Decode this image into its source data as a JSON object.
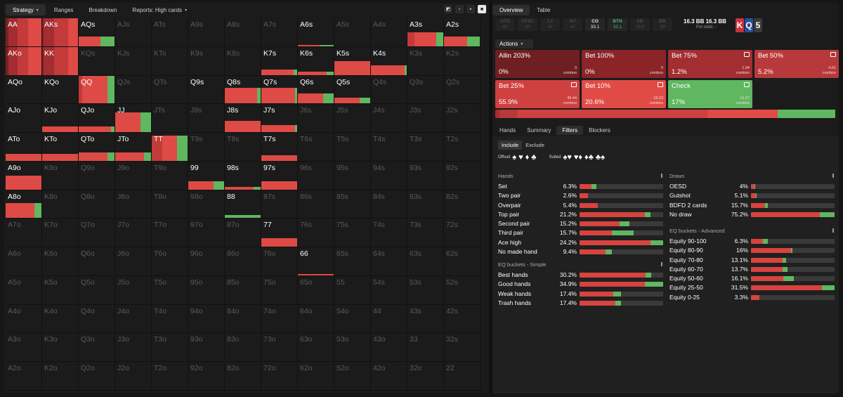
{
  "left_tabs": [
    {
      "label": "Strategy",
      "active": true,
      "caret": "▾"
    },
    {
      "label": "Ranges",
      "active": false,
      "caret": ""
    },
    {
      "label": "Breakdown",
      "active": false,
      "caret": ""
    },
    {
      "label": "Reports: High cards",
      "active": false,
      "caret": "▾"
    }
  ],
  "grid_tools": [
    "◩",
    "▫",
    "▪",
    "■"
  ],
  "grid": [
    [
      "AA",
      "AKs",
      "AQs",
      "AJs",
      "ATs",
      "A9s",
      "A8s",
      "A7s",
      "A6s",
      "A5s",
      "A4s",
      "A3s",
      "A2s"
    ],
    [
      "AKo",
      "KK",
      "KQs",
      "KJs",
      "KTs",
      "K9s",
      "K8s",
      "K7s",
      "K6s",
      "K5s",
      "K4s",
      "K3s",
      "K2s"
    ],
    [
      "AQo",
      "KQo",
      "QQ",
      "QJs",
      "QTs",
      "Q9s",
      "Q8s",
      "Q7s",
      "Q6s",
      "Q5s",
      "Q4s",
      "Q3s",
      "Q2s"
    ],
    [
      "AJo",
      "KJo",
      "QJo",
      "JJ",
      "JTs",
      "J9s",
      "J8s",
      "J7s",
      "J6s",
      "J5s",
      "J4s",
      "J3s",
      "J2s"
    ],
    [
      "ATo",
      "KTo",
      "QTo",
      "JTo",
      "TT",
      "T9s",
      "T8s",
      "T7s",
      "T6s",
      "T5s",
      "T4s",
      "T3s",
      "T2s"
    ],
    [
      "A9o",
      "K9o",
      "Q9o",
      "J9o",
      "T9o",
      "99",
      "98s",
      "97s",
      "96s",
      "95s",
      "94s",
      "93s",
      "92s"
    ],
    [
      "A8o",
      "K8o",
      "Q8o",
      "J8o",
      "T8o",
      "98o",
      "88",
      "87s",
      "86s",
      "85s",
      "84s",
      "83s",
      "82s"
    ],
    [
      "A7o",
      "K7o",
      "Q7o",
      "J7o",
      "T7o",
      "97o",
      "87o",
      "77",
      "76s",
      "75s",
      "74s",
      "73s",
      "72s"
    ],
    [
      "A6o",
      "K6o",
      "Q6o",
      "J6o",
      "T6o",
      "96o",
      "86o",
      "76o",
      "66",
      "65s",
      "64s",
      "63s",
      "62s"
    ],
    [
      "A5o",
      "K5o",
      "Q5o",
      "J5o",
      "T5o",
      "95o",
      "85o",
      "75o",
      "65o",
      "55",
      "54s",
      "53s",
      "52s"
    ],
    [
      "A4o",
      "K4o",
      "Q4o",
      "J4o",
      "T4o",
      "94o",
      "84o",
      "74o",
      "64o",
      "54o",
      "44",
      "43s",
      "42s"
    ],
    [
      "A3o",
      "K3o",
      "Q3o",
      "J3o",
      "T3o",
      "93o",
      "83o",
      "73o",
      "63o",
      "53o",
      "43o",
      "33",
      "32s"
    ],
    [
      "A2o",
      "K2o",
      "Q2o",
      "J2o",
      "T2o",
      "92o",
      "82o",
      "72o",
      "62o",
      "52o",
      "42o",
      "32o",
      "22"
    ]
  ],
  "grid_bright": [
    "AA",
    "AKs",
    "AQs",
    "A6s",
    "A3s",
    "A2s",
    "AKo",
    "KK",
    "K7s",
    "K6s",
    "K5s",
    "K4s",
    "AQo",
    "KQo",
    "QQ",
    "Q9s",
    "Q8s",
    "Q7s",
    "Q6s",
    "Q5s",
    "AJo",
    "KJo",
    "QJo",
    "JJ",
    "J8s",
    "J7s",
    "ATo",
    "KTo",
    "QTo",
    "JTo",
    "TT",
    "T7s",
    "A9o",
    "99",
    "98s",
    "97s",
    "A8o",
    "88",
    "77",
    "66"
  ],
  "grid_freq": {
    "AA": {
      "f": 1.0,
      "m": [
        8,
        26,
        28,
        38,
        0
      ]
    },
    "AKs": {
      "f": 1.0,
      "m": [
        4,
        30,
        38,
        28,
        0
      ]
    },
    "AQs": {
      "f": 0.35,
      "m": [
        0,
        0,
        0,
        60,
        40
      ]
    },
    "A6s": {
      "f": 0.05,
      "m": [
        0,
        0,
        0,
        60,
        40
      ]
    },
    "A3s": {
      "f": 0.5,
      "m": [
        0,
        0,
        20,
        60,
        20
      ]
    },
    "A2s": {
      "f": 0.35,
      "m": [
        0,
        0,
        0,
        65,
        35
      ]
    },
    "AKo": {
      "f": 1.0,
      "m": [
        8,
        26,
        28,
        38,
        0
      ]
    },
    "KK": {
      "f": 1.0,
      "m": [
        4,
        30,
        38,
        28,
        0
      ]
    },
    "K7s": {
      "f": 0.2,
      "m": [
        0,
        0,
        0,
        90,
        10
      ]
    },
    "K6s": {
      "f": 0.12,
      "m": [
        0,
        0,
        0,
        80,
        20
      ]
    },
    "K5s": {
      "f": 0.5,
      "m": [
        0,
        0,
        0,
        100,
        0
      ]
    },
    "K4s": {
      "f": 0.35,
      "m": [
        0,
        0,
        0,
        95,
        5
      ]
    },
    "QQ": {
      "f": 1.0,
      "m": [
        0,
        0,
        10,
        70,
        20
      ]
    },
    "Q8s": {
      "f": 0.55,
      "m": [
        0,
        0,
        0,
        90,
        10
      ]
    },
    "Q7s": {
      "f": 0.55,
      "m": [
        0,
        0,
        0,
        95,
        5
      ]
    },
    "Q6s": {
      "f": 0.35,
      "m": [
        0,
        0,
        0,
        70,
        30
      ]
    },
    "Q5s": {
      "f": 0.2,
      "m": [
        0,
        0,
        0,
        70,
        30
      ]
    },
    "QJo": {
      "f": 0.2,
      "m": [
        0,
        0,
        0,
        90,
        10
      ]
    },
    "KJo": {
      "f": 0.2,
      "m": [
        0,
        0,
        0,
        100,
        0
      ]
    },
    "JJ": {
      "f": 0.7,
      "m": [
        0,
        0,
        0,
        70,
        30
      ]
    },
    "J8s": {
      "f": 0.4,
      "m": [
        0,
        0,
        0,
        100,
        0
      ]
    },
    "J7s": {
      "f": 0.25,
      "m": [
        0,
        0,
        0,
        95,
        5
      ]
    },
    "ATo": {
      "f": 0.25,
      "m": [
        0,
        0,
        0,
        100,
        0
      ]
    },
    "KTo": {
      "f": 0.25,
      "m": [
        0,
        0,
        0,
        100,
        0
      ]
    },
    "QTo": {
      "f": 0.3,
      "m": [
        0,
        0,
        0,
        80,
        20
      ]
    },
    "JTo": {
      "f": 0.3,
      "m": [
        0,
        0,
        0,
        80,
        20
      ]
    },
    "TT": {
      "f": 0.9,
      "m": [
        0,
        0,
        30,
        40,
        30
      ]
    },
    "T7s": {
      "f": 0.2,
      "m": [
        0,
        0,
        0,
        100,
        0
      ]
    },
    "A9o": {
      "f": 0.5,
      "m": [
        0,
        0,
        0,
        100,
        0
      ]
    },
    "99": {
      "f": 0.3,
      "m": [
        0,
        0,
        0,
        70,
        30
      ]
    },
    "98s": {
      "f": 0.1,
      "m": [
        0,
        0,
        0,
        80,
        20
      ]
    },
    "97s": {
      "f": 0.3,
      "m": [
        0,
        0,
        0,
        100,
        0
      ]
    },
    "A8o": {
      "f": 0.55,
      "m": [
        0,
        0,
        0,
        80,
        20
      ]
    },
    "88": {
      "f": 0.1,
      "m": [
        0,
        0,
        0,
        0,
        100
      ]
    },
    "77": {
      "f": 0.3,
      "m": [
        0,
        0,
        0,
        100,
        0
      ]
    },
    "66": {
      "f": 0.05,
      "m": [
        0,
        0,
        0,
        100,
        0
      ]
    }
  },
  "right_tabs": [
    {
      "label": "Overview",
      "active": true
    },
    {
      "label": "Table",
      "active": false
    }
  ],
  "seats": [
    {
      "pos": "UTG",
      "stack": "40",
      "cls": ""
    },
    {
      "pos": "UTG1",
      "stack": "40",
      "cls": ""
    },
    {
      "pos": "LJ",
      "stack": "40",
      "cls": ""
    },
    {
      "pos": "HJ",
      "stack": "40",
      "cls": ""
    },
    {
      "pos": "CO",
      "stack": "33.1",
      "cls": "co"
    },
    {
      "pos": "BTN",
      "stack": "33.1",
      "cls": "btn"
    },
    {
      "pos": "SB",
      "stack": "39.5",
      "cls": ""
    },
    {
      "pos": "BB",
      "stack": "39",
      "cls": ""
    }
  ],
  "pot": {
    "a": "16.3 BB",
    "b": "16.3 BB",
    "odds": "Pot odds: -"
  },
  "board": [
    {
      "r": "K",
      "s": "h"
    },
    {
      "r": "Q",
      "s": "c"
    },
    {
      "r": "5",
      "s": "s"
    }
  ],
  "actions_label": "Actions",
  "actions": [
    {
      "name": "Allin 203%",
      "pct": "0%",
      "combos": "0",
      "unit": "combos",
      "color": "#6f1f21",
      "icon": false
    },
    {
      "name": "Bet 100%",
      "pct": "0%",
      "combos": "0",
      "unit": "combos",
      "color": "#8a2427",
      "icon": false
    },
    {
      "name": "Bet 75%",
      "pct": "1.2%",
      "combos": "1.04",
      "unit": "combos",
      "color": "#a22e31",
      "icon": true
    },
    {
      "name": "Bet 50%",
      "pct": "5.2%",
      "combos": "4.61",
      "unit": "combos",
      "color": "#b8393b",
      "icon": true
    },
    {
      "name": "Bet 25%",
      "pct": "55.9%",
      "combos": "49.44",
      "unit": "combos",
      "color": "#cf4040",
      "icon": true
    },
    {
      "name": "Bet 10%",
      "pct": "20.6%",
      "combos": "18.23",
      "unit": "combos",
      "color": "#e14b46",
      "icon": true
    },
    {
      "name": "Check",
      "pct": "17%",
      "combos": "15.07",
      "unit": "combos",
      "color": "#5fb760",
      "icon": true
    }
  ],
  "summary_bar": [
    {
      "w": 1.2,
      "c": "#a22e31"
    },
    {
      "w": 5.2,
      "c": "#b8393b"
    },
    {
      "w": 55.9,
      "c": "#cf4040"
    },
    {
      "w": 20.6,
      "c": "#e14b46"
    },
    {
      "w": 17,
      "c": "#5fb760"
    }
  ],
  "sub_tabs": [
    {
      "label": "Hands",
      "active": false
    },
    {
      "label": "Summary",
      "active": false
    },
    {
      "label": "Filters",
      "active": true
    },
    {
      "label": "Blockers",
      "active": false
    }
  ],
  "filters": {
    "include": "Include",
    "exclude": "Exclude",
    "offsuit": "Offsuit",
    "suited": "Suited",
    "offsuit_suits": [
      "♠",
      "♥",
      "♦",
      "♣"
    ],
    "suited_suits": [
      "♠♥",
      "♥♦",
      "♦♣",
      "♣♠"
    ]
  },
  "hands": {
    "title": "Hands",
    "rows": [
      {
        "l": "Set",
        "p": "6.3%",
        "b": [
          [
            70,
            "#d8433f"
          ],
          [
            30,
            "#5fb760"
          ]
        ],
        "w": 0.2
      },
      {
        "l": "Two pair",
        "p": "2.6%",
        "b": [
          [
            100,
            "#d8433f"
          ]
        ],
        "w": 0.1
      },
      {
        "l": "Overpair",
        "p": "5.4%",
        "b": [
          [
            100,
            "#d8433f"
          ]
        ],
        "w": 0.22
      },
      {
        "l": "Top pair",
        "p": "21.2%",
        "b": [
          [
            92,
            "#d8433f"
          ],
          [
            8,
            "#5fb760"
          ]
        ],
        "w": 0.85
      },
      {
        "l": "Second pair",
        "p": "15.2%",
        "b": [
          [
            80,
            "#d8433f"
          ],
          [
            20,
            "#5fb760"
          ]
        ],
        "w": 0.6
      },
      {
        "l": "Third pair",
        "p": "15.7%",
        "b": [
          [
            60,
            "#d8433f"
          ],
          [
            40,
            "#5fb760"
          ]
        ],
        "w": 0.65
      },
      {
        "l": "Ace high",
        "p": "24.2%",
        "b": [
          [
            85,
            "#d8433f"
          ],
          [
            15,
            "#5fb760"
          ]
        ],
        "w": 1.0
      },
      {
        "l": "No made hand",
        "p": "9.4%",
        "b": [
          [
            80,
            "#d8433f"
          ],
          [
            20,
            "#5fb760"
          ]
        ],
        "w": 0.39
      }
    ]
  },
  "eq_simple": {
    "title": "EQ buckets - Simple",
    "rows": [
      {
        "l": "Best hands",
        "p": "30.2%",
        "b": [
          [
            92,
            "#d8433f"
          ],
          [
            8,
            "#5fb760"
          ]
        ],
        "w": 0.86
      },
      {
        "l": "Good hands",
        "p": "34.9%",
        "b": [
          [
            78,
            "#d8433f"
          ],
          [
            22,
            "#5fb760"
          ]
        ],
        "w": 1.0
      },
      {
        "l": "Weak hands",
        "p": "17.4%",
        "b": [
          [
            80,
            "#d8433f"
          ],
          [
            20,
            "#5fb760"
          ]
        ],
        "w": 0.5
      },
      {
        "l": "Trash hands",
        "p": "17.4%",
        "b": [
          [
            85,
            "#d8433f"
          ],
          [
            15,
            "#5fb760"
          ]
        ],
        "w": 0.5
      }
    ]
  },
  "draws": {
    "title": "Draws",
    "rows": [
      {
        "l": "OESD",
        "p": "4%",
        "b": [
          [
            80,
            "#d8433f"
          ],
          [
            20,
            "#5fb760"
          ]
        ],
        "w": 0.05
      },
      {
        "l": "Gutshot",
        "p": "5.1%",
        "b": [
          [
            90,
            "#d8433f"
          ],
          [
            10,
            "#5fb760"
          ]
        ],
        "w": 0.07
      },
      {
        "l": "BDFD 2 cards",
        "p": "15.7%",
        "b": [
          [
            85,
            "#d8433f"
          ],
          [
            15,
            "#5fb760"
          ]
        ],
        "w": 0.2
      },
      {
        "l": "No draw",
        "p": "75.2%",
        "b": [
          [
            82,
            "#d8433f"
          ],
          [
            18,
            "#5fb760"
          ]
        ],
        "w": 1.0
      }
    ]
  },
  "eq_adv": {
    "title": "EQ buckets - Advanced",
    "rows": [
      {
        "l": "Equity 90-100",
        "p": "6.3%",
        "b": [
          [
            70,
            "#d8433f"
          ],
          [
            30,
            "#5fb760"
          ]
        ],
        "w": 0.2
      },
      {
        "l": "Equity 80-90",
        "p": "16%",
        "b": [
          [
            95,
            "#d8433f"
          ],
          [
            5,
            "#5fb760"
          ]
        ],
        "w": 0.5
      },
      {
        "l": "Equity 70-80",
        "p": "13.1%",
        "b": [
          [
            90,
            "#d8433f"
          ],
          [
            10,
            "#5fb760"
          ]
        ],
        "w": 0.42
      },
      {
        "l": "Equity 60-70",
        "p": "13.7%",
        "b": [
          [
            85,
            "#d8433f"
          ],
          [
            15,
            "#5fb760"
          ]
        ],
        "w": 0.44
      },
      {
        "l": "Equity 50-60",
        "p": "16.1%",
        "b": [
          [
            75,
            "#d8433f"
          ],
          [
            25,
            "#5fb760"
          ]
        ],
        "w": 0.51
      },
      {
        "l": "Equity 25-50",
        "p": "31.5%",
        "b": [
          [
            85,
            "#d8433f"
          ],
          [
            15,
            "#5fb760"
          ]
        ],
        "w": 1.0
      },
      {
        "l": "Equity 0-25",
        "p": "3.3%",
        "b": [
          [
            100,
            "#d8433f"
          ]
        ],
        "w": 0.1
      }
    ]
  },
  "strategy_colors": [
    "#7a2124",
    "#a32d30",
    "#c23a3a",
    "#de4a45",
    "#5fb760"
  ]
}
